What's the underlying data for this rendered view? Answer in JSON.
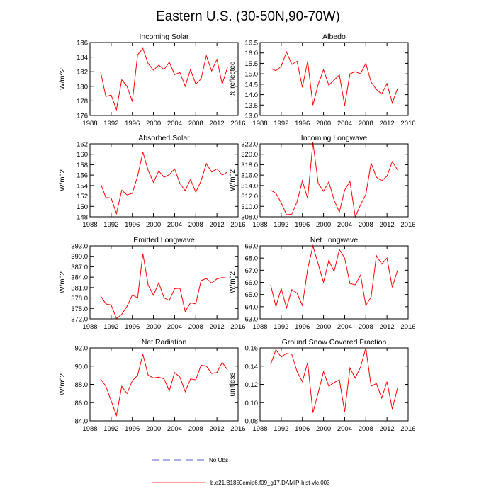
{
  "figure_title": "Eastern U.S. (30-50N,90-70W)",
  "legend": {
    "obs_label": "No Obs",
    "model_label": "b.e21.B1850cmip6.f09_g17.DAMIP-hist-vlc.003",
    "obs_color": "#5b5bd6",
    "model_color": "#ff0000"
  },
  "chart_data": [
    {
      "type": "line",
      "title": "Incoming Solar",
      "ylabel": "W/m^2",
      "xlim": [
        1988,
        2016
      ],
      "xticks": [
        1988,
        1992,
        1996,
        2000,
        2004,
        2008,
        2012,
        2016
      ],
      "ylim": [
        176,
        186
      ],
      "yticks": [
        176,
        178,
        180,
        182,
        184,
        186
      ],
      "ytick_decimals": 0,
      "series": [
        {
          "name": "b.e21.B1850cmip6.f09_g17.DAMIP-hist-vlc.003",
          "x": [
            1990,
            1991,
            1992,
            1993,
            1994,
            1995,
            1996,
            1997,
            1998,
            1999,
            2000,
            2001,
            2002,
            2003,
            2004,
            2005,
            2006,
            2007,
            2008,
            2009,
            2010,
            2011,
            2012,
            2013,
            2014
          ],
          "values": [
            182.0,
            178.6,
            178.8,
            176.8,
            180.9,
            180.0,
            177.9,
            184.3,
            185.2,
            183.1,
            182.2,
            182.9,
            182.3,
            183.3,
            181.6,
            181.9,
            180.0,
            182.3,
            180.3,
            181.0,
            184.2,
            182.1,
            183.7,
            180.3,
            182.6
          ]
        }
      ]
    },
    {
      "type": "line",
      "title": "Albedo",
      "ylabel": "% reflected",
      "xlim": [
        1988,
        2016
      ],
      "xticks": [
        1988,
        1992,
        1996,
        2000,
        2004,
        2008,
        2012,
        2016
      ],
      "ylim": [
        13.0,
        16.5
      ],
      "yticks": [
        13.0,
        13.5,
        14.0,
        14.5,
        15.0,
        15.5,
        16.0,
        16.5
      ],
      "ytick_decimals": 1,
      "series": [
        {
          "name": "b.e21.B1850cmip6.f09_g17.DAMIP-hist-vlc.003",
          "x": [
            1990,
            1991,
            1992,
            1993,
            1994,
            1995,
            1996,
            1997,
            1998,
            1999,
            2000,
            2001,
            2002,
            2003,
            2004,
            2005,
            2006,
            2007,
            2008,
            2009,
            2010,
            2011,
            2012,
            2013,
            2014
          ],
          "values": [
            15.25,
            15.15,
            15.35,
            16.05,
            15.45,
            15.6,
            14.35,
            15.6,
            13.5,
            14.5,
            15.2,
            14.45,
            14.7,
            14.95,
            13.48,
            15.0,
            15.1,
            15.0,
            15.5,
            14.6,
            14.25,
            14.03,
            14.53,
            13.6,
            14.3
          ]
        }
      ]
    },
    {
      "type": "line",
      "title": "Absorbed Solar",
      "ylabel": "W/m^2",
      "xlim": [
        1988,
        2016
      ],
      "xticks": [
        1988,
        1992,
        1996,
        2000,
        2004,
        2008,
        2012,
        2016
      ],
      "ylim": [
        148,
        162
      ],
      "yticks": [
        148,
        150,
        152,
        154,
        156,
        158,
        160,
        162
      ],
      "ytick_decimals": 0,
      "series": [
        {
          "name": "b.e21.B1850cmip6.f09_g17.DAMIP-hist-vlc.003",
          "x": [
            1990,
            1991,
            1992,
            1993,
            1994,
            1995,
            1996,
            1997,
            1998,
            1999,
            2000,
            2001,
            2002,
            2003,
            2004,
            2005,
            2006,
            2007,
            2008,
            2009,
            2010,
            2011,
            2012,
            2013,
            2014
          ],
          "values": [
            154.4,
            151.7,
            151.6,
            148.6,
            153.1,
            152.2,
            152.5,
            155.8,
            160.4,
            156.9,
            154.6,
            156.8,
            155.6,
            156.1,
            157.2,
            154.4,
            153.0,
            155.2,
            152.7,
            154.9,
            158.2,
            156.6,
            157.2,
            156.0,
            156.6
          ]
        }
      ]
    },
    {
      "type": "line",
      "title": "Incoming Longwave",
      "ylabel": "W/m^2",
      "xlim": [
        1988,
        2016
      ],
      "xticks": [
        1988,
        1992,
        1996,
        2000,
        2004,
        2008,
        2012,
        2016
      ],
      "ylim": [
        308.0,
        322.0
      ],
      "yticks": [
        308.0,
        310.0,
        312.0,
        314.0,
        316.0,
        318.0,
        320.0,
        322.0
      ],
      "ytick_decimals": 1,
      "series": [
        {
          "name": "b.e21.B1850cmip6.f09_g17.DAMIP-hist-vlc.003",
          "x": [
            1990,
            1991,
            1992,
            1993,
            1994,
            1995,
            1996,
            1997,
            1998,
            1999,
            2000,
            2001,
            2002,
            2003,
            2004,
            2005,
            2006,
            2007,
            2008,
            2009,
            2010,
            2011,
            2012,
            2013,
            2014
          ],
          "values": [
            313.1,
            312.5,
            310.7,
            308.4,
            308.5,
            310.9,
            314.9,
            311.5,
            322.3,
            314.4,
            312.9,
            314.7,
            311.2,
            308.9,
            313.1,
            314.8,
            308.0,
            310.3,
            312.3,
            318.3,
            315.6,
            314.9,
            315.8,
            318.6,
            317.0
          ]
        }
      ]
    },
    {
      "type": "line",
      "title": "Emitted Longwave",
      "ylabel": "W/m^2",
      "xlim": [
        1988,
        2016
      ],
      "xticks": [
        1988,
        1992,
        1996,
        2000,
        2004,
        2008,
        2012,
        2016
      ],
      "ylim": [
        372.0,
        393.0
      ],
      "yticks": [
        372.0,
        375.0,
        378.0,
        381.0,
        384.0,
        387.0,
        390.0,
        393.0
      ],
      "ytick_decimals": 1,
      "series": [
        {
          "name": "b.e21.B1850cmip6.f09_g17.DAMIP-hist-vlc.003",
          "x": [
            1990,
            1991,
            1992,
            1993,
            1994,
            1995,
            1996,
            1997,
            1998,
            1999,
            2000,
            2001,
            2002,
            2003,
            2004,
            2005,
            2006,
            2007,
            2008,
            2009,
            2010,
            2011,
            2012,
            2013,
            2014
          ],
          "values": [
            378.6,
            376.3,
            376.0,
            372.1,
            373.3,
            375.6,
            378.9,
            378.0,
            390.8,
            381.7,
            378.8,
            382.4,
            378.0,
            377.3,
            380.7,
            380.8,
            374.1,
            376.6,
            376.3,
            383.0,
            383.6,
            382.3,
            383.5,
            383.9,
            383.7
          ]
        }
      ]
    },
    {
      "type": "line",
      "title": "Net Longwave",
      "ylabel": "W/m^2",
      "xlim": [
        1988,
        2016
      ],
      "xticks": [
        1988,
        1992,
        1996,
        2000,
        2004,
        2008,
        2012,
        2016
      ],
      "ylim": [
        63.0,
        69.0
      ],
      "yticks": [
        63.0,
        64.0,
        65.0,
        66.0,
        67.0,
        68.0,
        69.0
      ],
      "ytick_decimals": 1,
      "series": [
        {
          "name": "b.e21.B1850cmip6.f09_g17.DAMIP-hist-vlc.003",
          "x": [
            1990,
            1991,
            1992,
            1993,
            1994,
            1995,
            1996,
            1997,
            1998,
            1999,
            2000,
            2001,
            2002,
            2003,
            2004,
            2005,
            2006,
            2007,
            2008,
            2009,
            2010,
            2011,
            2012,
            2013,
            2014
          ],
          "values": [
            65.8,
            64.0,
            65.5,
            63.9,
            65.4,
            65.1,
            64.1,
            67.1,
            69.0,
            67.5,
            66.0,
            67.8,
            66.9,
            68.7,
            68.0,
            65.9,
            65.8,
            66.6,
            64.1,
            64.8,
            68.2,
            67.5,
            68.0,
            65.6,
            67.0
          ]
        }
      ]
    },
    {
      "type": "line",
      "title": "Net Radiation",
      "ylabel": "W/m^2",
      "xlim": [
        1988,
        2016
      ],
      "xticks": [
        1988,
        1992,
        1996,
        2000,
        2004,
        2008,
        2012,
        2016
      ],
      "ylim": [
        84.0,
        92.0
      ],
      "yticks": [
        84.0,
        86.0,
        88.0,
        90.0,
        92.0
      ],
      "ytick_decimals": 1,
      "series": [
        {
          "name": "b.e21.B1850cmip6.f09_g17.DAMIP-hist-vlc.003",
          "x": [
            1990,
            1991,
            1992,
            1993,
            1994,
            1995,
            1996,
            1997,
            1998,
            1999,
            2000,
            2001,
            2002,
            2003,
            2004,
            2005,
            2006,
            2007,
            2008,
            2009,
            2010,
            2011,
            2012,
            2013,
            2014
          ],
          "values": [
            88.6,
            87.8,
            86.2,
            84.6,
            87.8,
            87.0,
            88.4,
            89.0,
            91.3,
            89.0,
            88.7,
            88.8,
            88.6,
            87.3,
            89.3,
            88.8,
            87.2,
            88.6,
            88.5,
            90.1,
            90.0,
            89.2,
            89.3,
            90.4,
            89.6
          ]
        }
      ]
    },
    {
      "type": "line",
      "title": "Ground Snow Covered Fraction",
      "ylabel": "unitless",
      "xlim": [
        1988,
        2016
      ],
      "xticks": [
        1988,
        1992,
        1996,
        2000,
        2004,
        2008,
        2012,
        2016
      ],
      "ylim": [
        0.08,
        0.16
      ],
      "yticks": [
        0.08,
        0.1,
        0.12,
        0.14,
        0.16
      ],
      "ytick_decimals": 2,
      "series": [
        {
          "name": "b.e21.B1850cmip6.f09_g17.DAMIP-hist-vlc.003",
          "x": [
            1990,
            1991,
            1992,
            1993,
            1994,
            1995,
            1996,
            1997,
            1998,
            1999,
            2000,
            2001,
            2002,
            2003,
            2004,
            2005,
            2006,
            2007,
            2008,
            2009,
            2010,
            2011,
            2012,
            2013,
            2014
          ],
          "values": [
            0.142,
            0.158,
            0.15,
            0.154,
            0.153,
            0.134,
            0.123,
            0.144,
            0.089,
            0.111,
            0.134,
            0.118,
            0.122,
            0.125,
            0.09,
            0.138,
            0.127,
            0.139,
            0.16,
            0.118,
            0.121,
            0.105,
            0.123,
            0.093,
            0.116
          ]
        }
      ]
    }
  ]
}
